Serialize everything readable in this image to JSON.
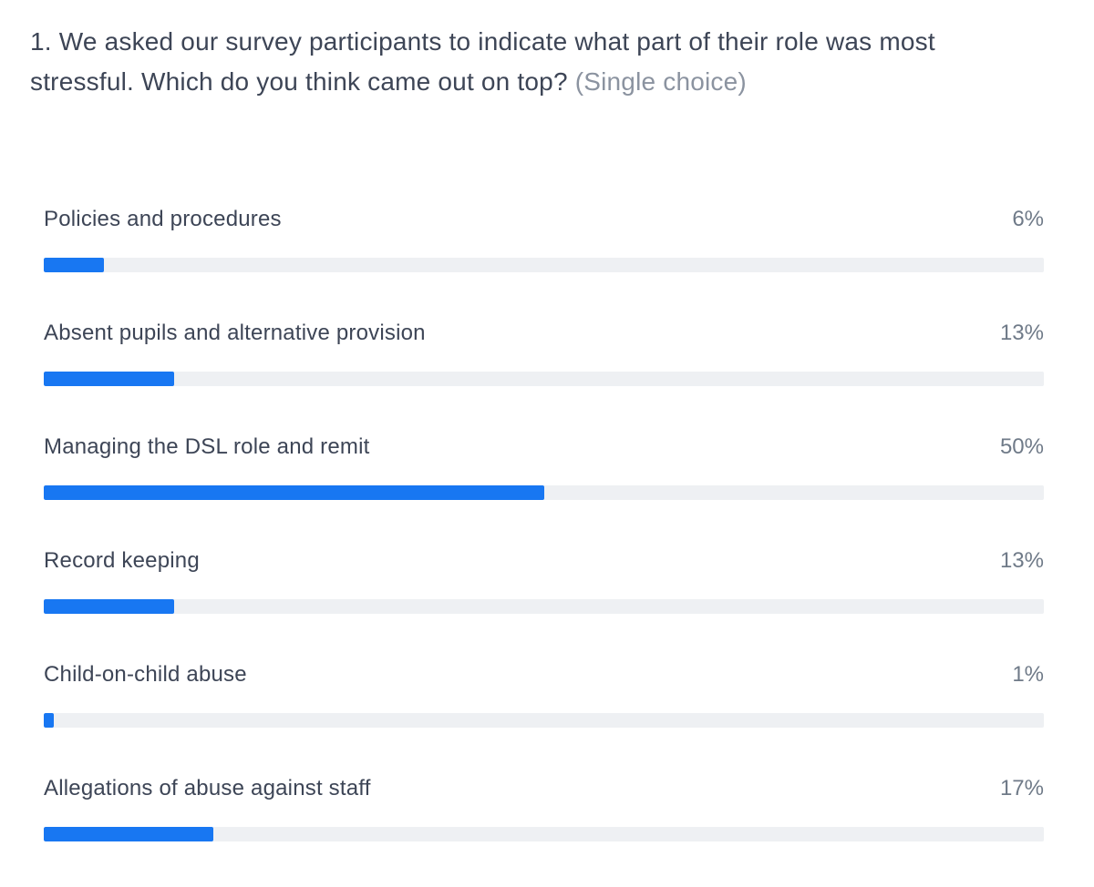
{
  "question": {
    "text": "1. We asked our survey participants to indicate what part of their role was most stressful. Which do you think came out on top?",
    "choice_type": "(Single choice)"
  },
  "chart_data": {
    "type": "bar",
    "orientation": "horizontal",
    "title": "1. We asked our survey participants to indicate what part of their role was most stressful. Which do you think came out on top? (Single choice)",
    "categories": [
      "Policies and procedures",
      "Absent pupils and alternative provision",
      "Managing the DSL role and remit",
      "Record keeping",
      "Child-on-child abuse",
      "Allegations of abuse against staff"
    ],
    "values": [
      6,
      13,
      50,
      13,
      1,
      17
    ],
    "value_labels": [
      "6%",
      "13%",
      "50%",
      "13%",
      "1%",
      "17%"
    ],
    "xlabel": "",
    "ylabel": "",
    "xlim": [
      0,
      100
    ],
    "unit": "percent",
    "grid": false,
    "legend": false
  },
  "colors": {
    "bar_fill": "#1877f2",
    "bar_track": "#eef0f3",
    "label_text": "#3d4556",
    "value_text": "#6f7a88",
    "muted_text": "#8b93a0",
    "background": "#ffffff"
  }
}
